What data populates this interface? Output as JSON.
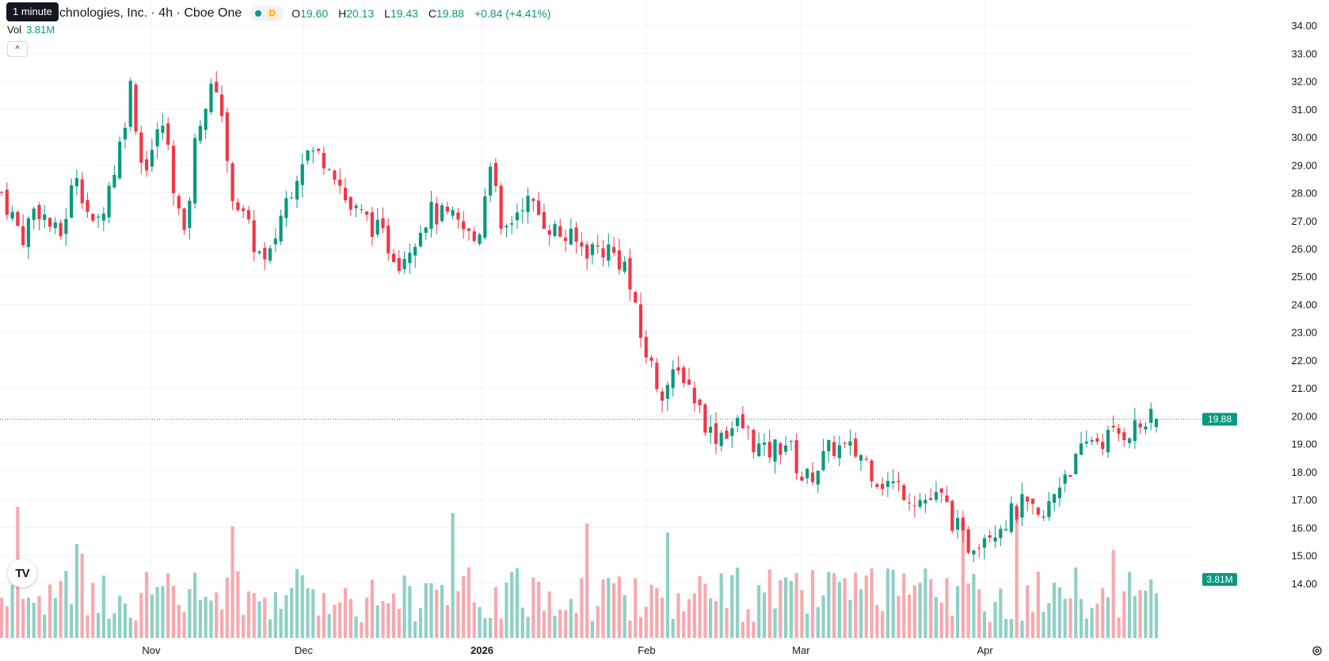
{
  "header": {
    "title": "echnologies, Inc. · 4h · Cboe One",
    "tooltip": "1 minute",
    "status_badge": "D",
    "ohlc": {
      "o_label": "O",
      "o": "19.60",
      "h_label": "H",
      "h": "20.13",
      "l_label": "L",
      "l": "19.43",
      "c_label": "C",
      "c": "19.88",
      "change": "+0.84 (+4.41%)"
    }
  },
  "volume_legend": {
    "label": "Vol",
    "value": "3.81M"
  },
  "price_axis": {
    "ticks": [
      "34.00",
      "33.00",
      "32.00",
      "31.00",
      "30.00",
      "29.00",
      "28.00",
      "27.00",
      "26.00",
      "25.00",
      "24.00",
      "23.00",
      "22.00",
      "21.00",
      "20.00",
      "19.00",
      "18.00",
      "17.00",
      "16.00",
      "15.00",
      "14.00"
    ],
    "last_price_label": "19.88",
    "last_volume_label": "3.81M"
  },
  "time_axis": {
    "labels": [
      {
        "text": "Nov",
        "t": 0.1296,
        "bold": false
      },
      {
        "text": "Dec",
        "t": 0.2616,
        "bold": false
      },
      {
        "text": "2026",
        "t": 0.416,
        "bold": true
      },
      {
        "text": "Feb",
        "t": 0.5586,
        "bold": false
      },
      {
        "text": "Mar",
        "t": 0.6923,
        "bold": false
      },
      {
        "text": "Apr",
        "t": 0.8516,
        "bold": false
      }
    ]
  },
  "colors": {
    "up": "#089981",
    "down": "#f23645",
    "up_vol": "#8fd0c5",
    "down_vol": "#f7a9ae",
    "grid": "#f0f3fa"
  },
  "chart_data": {
    "type": "candlestick",
    "interval": "4h",
    "last_price": 19.88,
    "y_range": [
      13.4,
      34.4
    ],
    "anchors": [
      {
        "t": 0.0,
        "price": 28.0
      },
      {
        "t": 0.018,
        "price": 26.4
      },
      {
        "t": 0.03,
        "price": 27.6
      },
      {
        "t": 0.05,
        "price": 26.3
      },
      {
        "t": 0.065,
        "price": 28.8
      },
      {
        "t": 0.08,
        "price": 26.5
      },
      {
        "t": 0.1,
        "price": 29.2
      },
      {
        "t": 0.112,
        "price": 31.9
      },
      {
        "t": 0.122,
        "price": 28.8
      },
      {
        "t": 0.14,
        "price": 30.5
      },
      {
        "t": 0.158,
        "price": 26.2
      },
      {
        "t": 0.17,
        "price": 30.6
      },
      {
        "t": 0.188,
        "price": 32.1
      },
      {
        "t": 0.196,
        "price": 28.5
      },
      {
        "t": 0.212,
        "price": 26.8
      },
      {
        "t": 0.23,
        "price": 25.2
      },
      {
        "t": 0.24,
        "price": 27.0
      },
      {
        "t": 0.262,
        "price": 29.5
      },
      {
        "t": 0.285,
        "price": 29.2
      },
      {
        "t": 0.3,
        "price": 27.5
      },
      {
        "t": 0.32,
        "price": 26.9
      },
      {
        "t": 0.345,
        "price": 25.6
      },
      {
        "t": 0.37,
        "price": 27.3
      },
      {
        "t": 0.39,
        "price": 27.0
      },
      {
        "t": 0.412,
        "price": 26.2
      },
      {
        "t": 0.424,
        "price": 29.5
      },
      {
        "t": 0.432,
        "price": 26.3
      },
      {
        "t": 0.452,
        "price": 27.8
      },
      {
        "t": 0.48,
        "price": 26.6
      },
      {
        "t": 0.505,
        "price": 26.0
      },
      {
        "t": 0.525,
        "price": 26.0
      },
      {
        "t": 0.54,
        "price": 25.4
      },
      {
        "t": 0.552,
        "price": 23.0
      },
      {
        "t": 0.57,
        "price": 20.9
      },
      {
        "t": 0.59,
        "price": 21.6
      },
      {
        "t": 0.615,
        "price": 19.3
      },
      {
        "t": 0.64,
        "price": 19.7
      },
      {
        "t": 0.66,
        "price": 18.6
      },
      {
        "t": 0.68,
        "price": 19.1
      },
      {
        "t": 0.695,
        "price": 17.6
      },
      {
        "t": 0.72,
        "price": 18.9
      },
      {
        "t": 0.745,
        "price": 18.6
      },
      {
        "t": 0.76,
        "price": 17.7
      },
      {
        "t": 0.78,
        "price": 17.4
      },
      {
        "t": 0.795,
        "price": 17.0
      },
      {
        "t": 0.815,
        "price": 17.0
      },
      {
        "t": 0.835,
        "price": 15.3
      },
      {
        "t": 0.85,
        "price": 15.8
      },
      {
        "t": 0.87,
        "price": 16.3
      },
      {
        "t": 0.885,
        "price": 16.8
      },
      {
        "t": 0.9,
        "price": 16.1
      },
      {
        "t": 0.92,
        "price": 18.0
      },
      {
        "t": 0.93,
        "price": 18.3
      },
      {
        "t": 0.945,
        "price": 19.3
      },
      {
        "t": 0.95,
        "price": 19.1
      },
      {
        "t": 1.0,
        "price": 19.88
      }
    ],
    "volume": {
      "last_value": "3.81M"
    }
  }
}
